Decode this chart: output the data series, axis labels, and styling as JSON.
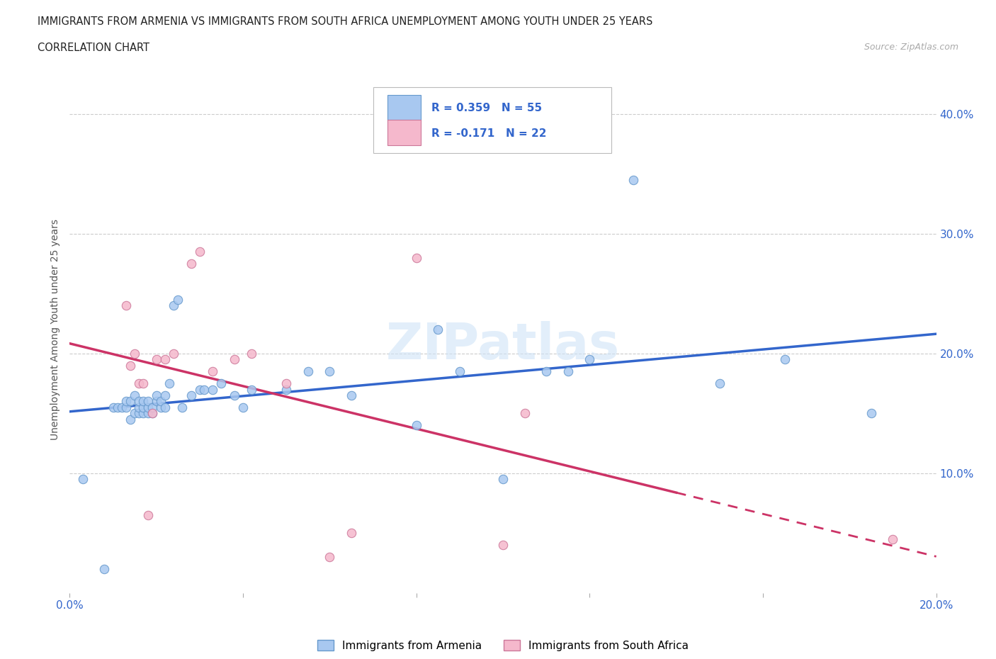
{
  "title_line1": "IMMIGRANTS FROM ARMENIA VS IMMIGRANTS FROM SOUTH AFRICA UNEMPLOYMENT AMONG YOUTH UNDER 25 YEARS",
  "title_line2": "CORRELATION CHART",
  "source_text": "Source: ZipAtlas.com",
  "ylabel": "Unemployment Among Youth under 25 years",
  "xlim": [
    0.0,
    0.2
  ],
  "ylim": [
    0.0,
    0.44
  ],
  "ytick_positions": [
    0.1,
    0.2,
    0.3,
    0.4
  ],
  "ytick_labels": [
    "10.0%",
    "20.0%",
    "30.0%",
    "40.0%"
  ],
  "armenia_color": "#a8c8f0",
  "armenia_edge": "#6699cc",
  "south_africa_color": "#f5b8cc",
  "south_africa_edge": "#cc7799",
  "line_armenia_color": "#3366cc",
  "line_sa_color": "#cc3366",
  "watermark": "ZIPatlas",
  "armenia_x": [
    0.003,
    0.008,
    0.01,
    0.011,
    0.012,
    0.013,
    0.013,
    0.014,
    0.014,
    0.015,
    0.015,
    0.016,
    0.016,
    0.016,
    0.017,
    0.017,
    0.017,
    0.018,
    0.018,
    0.018,
    0.019,
    0.019,
    0.02,
    0.02,
    0.021,
    0.021,
    0.022,
    0.022,
    0.023,
    0.024,
    0.025,
    0.026,
    0.028,
    0.03,
    0.031,
    0.033,
    0.035,
    0.038,
    0.04,
    0.042,
    0.05,
    0.055,
    0.06,
    0.065,
    0.08,
    0.085,
    0.09,
    0.1,
    0.11,
    0.115,
    0.12,
    0.13,
    0.15,
    0.165,
    0.185
  ],
  "armenia_y": [
    0.095,
    0.02,
    0.155,
    0.155,
    0.155,
    0.155,
    0.16,
    0.145,
    0.16,
    0.15,
    0.165,
    0.15,
    0.155,
    0.16,
    0.15,
    0.155,
    0.16,
    0.15,
    0.155,
    0.16,
    0.15,
    0.155,
    0.16,
    0.165,
    0.155,
    0.16,
    0.155,
    0.165,
    0.175,
    0.24,
    0.245,
    0.155,
    0.165,
    0.17,
    0.17,
    0.17,
    0.175,
    0.165,
    0.155,
    0.17,
    0.17,
    0.185,
    0.185,
    0.165,
    0.14,
    0.22,
    0.185,
    0.095,
    0.185,
    0.185,
    0.195,
    0.345,
    0.175,
    0.195,
    0.15
  ],
  "sa_x": [
    0.013,
    0.014,
    0.015,
    0.016,
    0.017,
    0.018,
    0.019,
    0.02,
    0.022,
    0.024,
    0.028,
    0.03,
    0.033,
    0.038,
    0.042,
    0.05,
    0.06,
    0.065,
    0.08,
    0.1,
    0.105,
    0.19
  ],
  "sa_y": [
    0.24,
    0.19,
    0.2,
    0.175,
    0.175,
    0.065,
    0.15,
    0.195,
    0.195,
    0.2,
    0.275,
    0.285,
    0.185,
    0.195,
    0.2,
    0.175,
    0.03,
    0.05,
    0.28,
    0.04,
    0.15,
    0.045
  ],
  "arm_line_x0": 0.0,
  "arm_line_y0": 0.148,
  "arm_line_x1": 0.2,
  "arm_line_y1": 0.205,
  "sa_line_x0": 0.0,
  "sa_line_y0": 0.175,
  "sa_line_x1": 0.2,
  "sa_line_y1": 0.085,
  "sa_line_solid_end": 0.14,
  "sa_line_dashed_start": 0.14
}
